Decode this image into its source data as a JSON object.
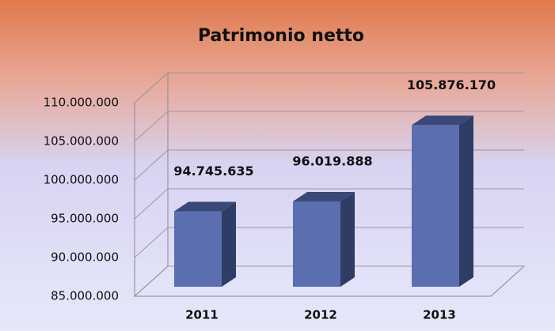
{
  "chart_data": {
    "type": "bar3d",
    "title": "Patrimonio netto",
    "categories": [
      "2011",
      "2012",
      "2013"
    ],
    "values": [
      94745635,
      96019888,
      105876170
    ],
    "value_labels": [
      "94.745.635",
      "96.019.888",
      "105.876.170"
    ],
    "color": "#5b6fb0",
    "ylim": [
      85000000,
      110000000
    ],
    "yticks": [
      {
        "value": 85000000,
        "label": "85.000.000"
      },
      {
        "value": 90000000,
        "label": "90.000.000"
      },
      {
        "value": 95000000,
        "label": "95.000.000"
      },
      {
        "value": 100000000,
        "label": "100.000.000"
      },
      {
        "value": 105000000,
        "label": "105.000.000"
      },
      {
        "value": 110000000,
        "label": "110.000.000"
      }
    ],
    "grid": true
  }
}
